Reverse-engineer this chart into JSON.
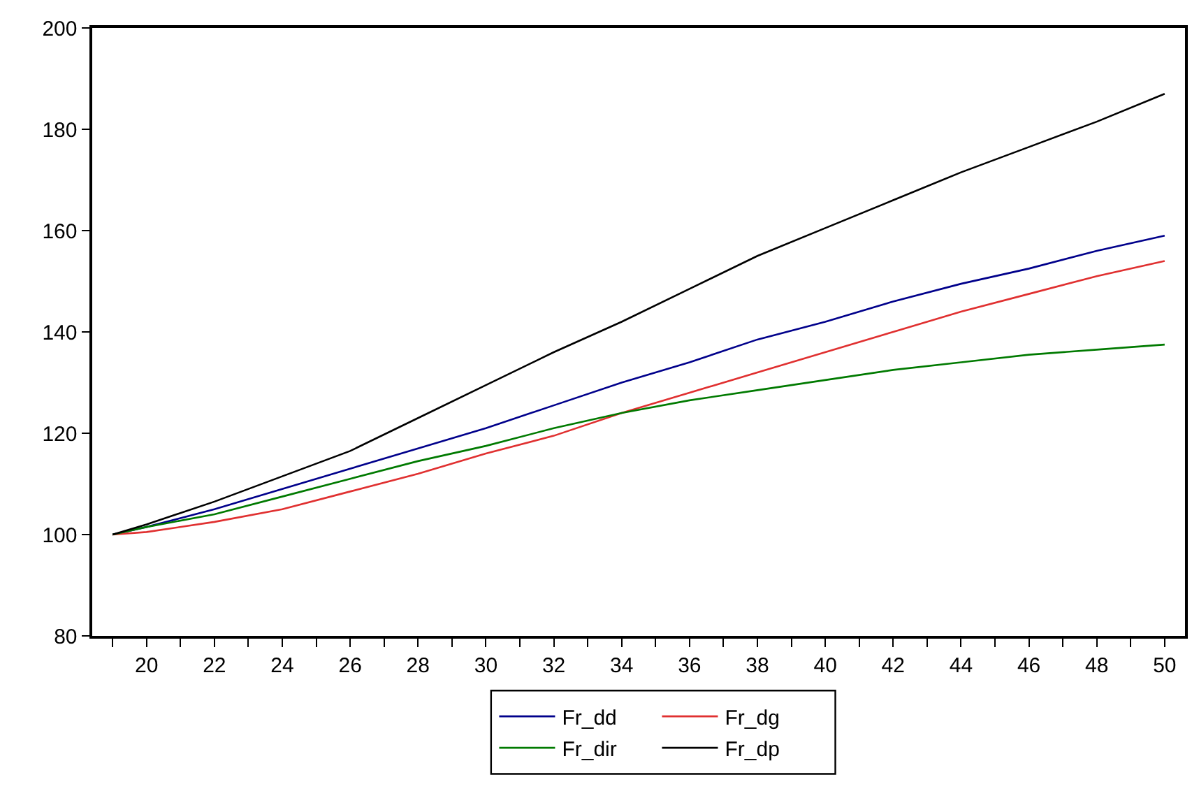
{
  "chart_data": {
    "type": "line",
    "x": [
      19,
      20,
      22,
      24,
      26,
      28,
      30,
      32,
      34,
      36,
      38,
      40,
      42,
      44,
      46,
      48,
      50
    ],
    "series": [
      {
        "name": "Fr_dd",
        "color": "#00008b",
        "values": [
          100,
          101.5,
          105,
          109,
          113,
          117,
          121,
          125.5,
          130,
          134,
          138.5,
          142,
          146,
          149.5,
          152.5,
          156,
          159
        ]
      },
      {
        "name": "Fr_dg",
        "color": "#e03030",
        "values": [
          100,
          100.5,
          102.5,
          105,
          108.5,
          112,
          116,
          119.5,
          124,
          128,
          132,
          136,
          140,
          144,
          147.5,
          151,
          154
        ]
      },
      {
        "name": "Fr_dir",
        "color": "#007a00",
        "values": [
          100,
          101.5,
          104,
          107.5,
          111,
          114.5,
          117.5,
          121,
          124,
          126.5,
          128.5,
          130.5,
          132.5,
          134,
          135.5,
          136.5,
          137.5
        ]
      },
      {
        "name": "Fr_dp",
        "color": "#000000",
        "values": [
          100,
          102,
          106.5,
          111.5,
          116.5,
          123,
          129.5,
          136,
          142,
          148.5,
          155,
          160.5,
          166,
          171.5,
          176.5,
          181.5,
          187
        ]
      }
    ],
    "xlim": [
      18.4,
      50.6
    ],
    "xticks": [
      {
        "value": 19,
        "label": null
      },
      20,
      {
        "value": 21,
        "label": null
      },
      22,
      {
        "value": 23,
        "label": null
      },
      24,
      {
        "value": 25,
        "label": null
      },
      26,
      {
        "value": 27,
        "label": null
      },
      28,
      {
        "value": 29,
        "label": null
      },
      30,
      {
        "value": 31,
        "label": null
      },
      32,
      {
        "value": 33,
        "label": null
      },
      34,
      {
        "value": 35,
        "label": null
      },
      36,
      {
        "value": 37,
        "label": null
      },
      38,
      {
        "value": 39,
        "label": null
      },
      40,
      {
        "value": 41,
        "label": null
      },
      42,
      {
        "value": 43,
        "label": null
      },
      44,
      {
        "value": 45,
        "label": null
      },
      46,
      {
        "value": 47,
        "label": null
      },
      48,
      {
        "value": 49,
        "label": null
      },
      50
    ],
    "ylim": [
      80,
      200
    ],
    "yticks": [
      80,
      100,
      120,
      140,
      160,
      180,
      200
    ],
    "legend": "bottom",
    "marker": "none",
    "line_style": "solid"
  }
}
